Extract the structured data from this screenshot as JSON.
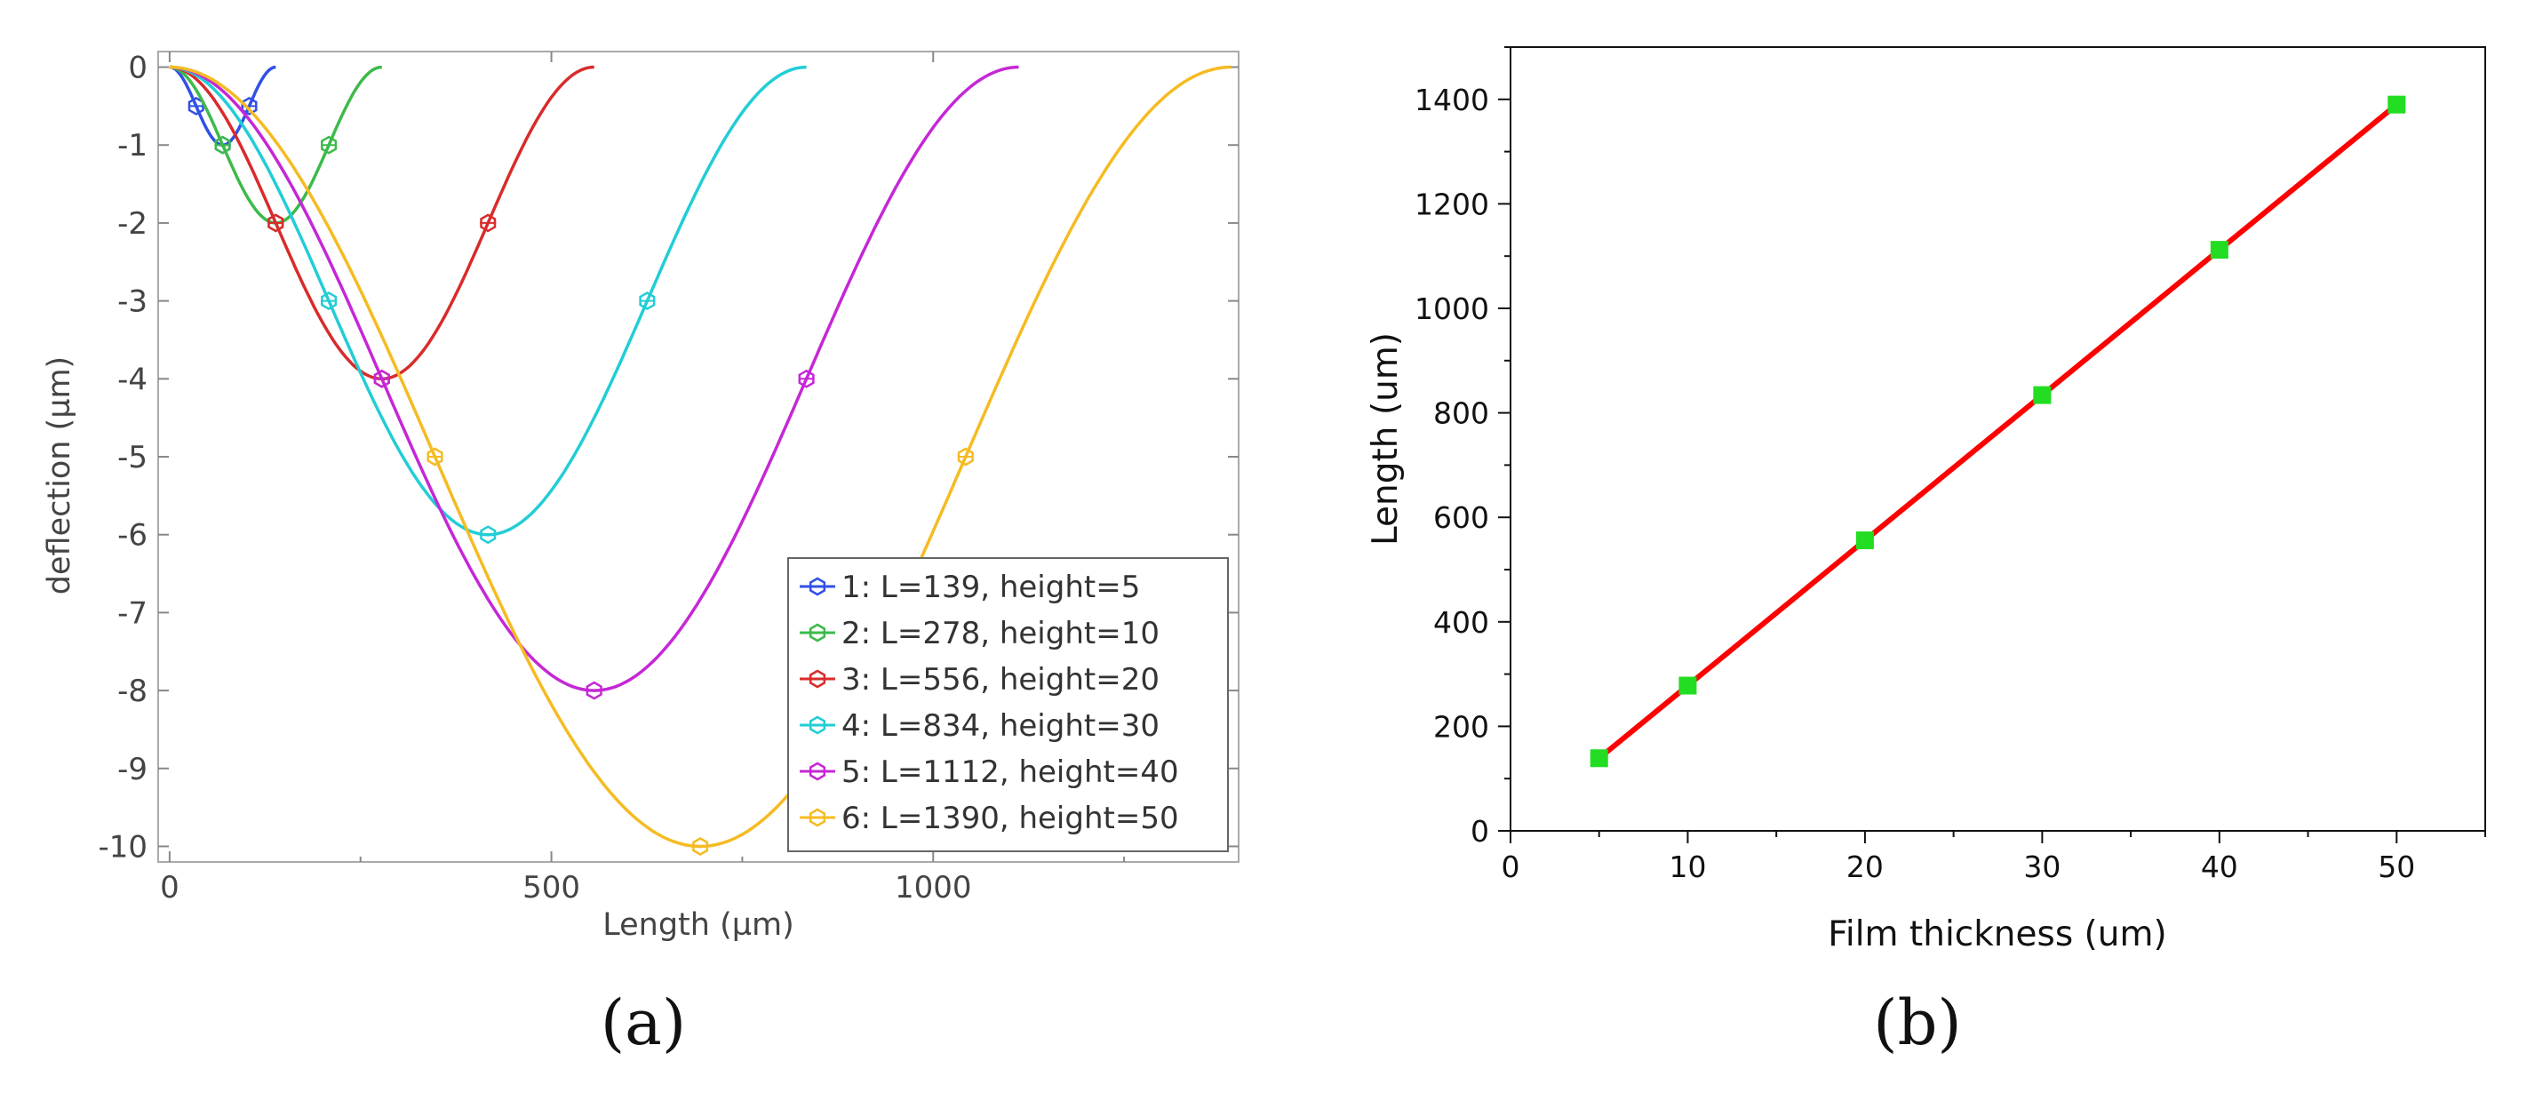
{
  "chart_data": [
    {
      "type": "line",
      "panel_label": "(a)",
      "xlabel": "Length (µm)",
      "ylabel": "deflection (µm)",
      "xlim": [
        -15,
        1400
      ],
      "ylim": [
        -10.2,
        0.2
      ],
      "xticks": [
        0,
        500,
        1000
      ],
      "yticks": [
        0,
        -1,
        -2,
        -3,
        -4,
        -5,
        -6,
        -7,
        -8,
        -9,
        -10
      ],
      "legend_position": "bottom-right",
      "series": [
        {
          "name": "1: L=139, height=5",
          "L": 139,
          "height": 5,
          "color": "#3050e6"
        },
        {
          "name": "2: L=278, height=10",
          "L": 278,
          "height": 10,
          "color": "#3dba4a"
        },
        {
          "name": "3: L=556, height=20",
          "L": 556,
          "height": 20,
          "color": "#d92b2b"
        },
        {
          "name": "4: L=834, height=30",
          "L": 834,
          "height": 30,
          "color": "#22cdd6"
        },
        {
          "name": "5: L=1112, height=40",
          "L": 1112,
          "height": 40,
          "color": "#c527d6"
        },
        {
          "name": "6: L=1390, height=50",
          "L": 1390,
          "height": 50,
          "color": "#f5bb22"
        }
      ]
    },
    {
      "type": "line",
      "panel_label": "(b)",
      "xlabel": "Film thickness (um)",
      "ylabel": "Length (um)",
      "xlim": [
        0,
        55
      ],
      "ylim": [
        0,
        1500
      ],
      "xticks": [
        0,
        10,
        20,
        30,
        40,
        50
      ],
      "yticks": [
        0,
        200,
        400,
        600,
        800,
        1000,
        1200,
        1400
      ],
      "x": [
        5,
        10,
        20,
        30,
        40,
        50
      ],
      "y": [
        139,
        278,
        556,
        834,
        1112,
        1390
      ],
      "line_color": "#ff0000",
      "marker_color": "#22dd22"
    }
  ]
}
